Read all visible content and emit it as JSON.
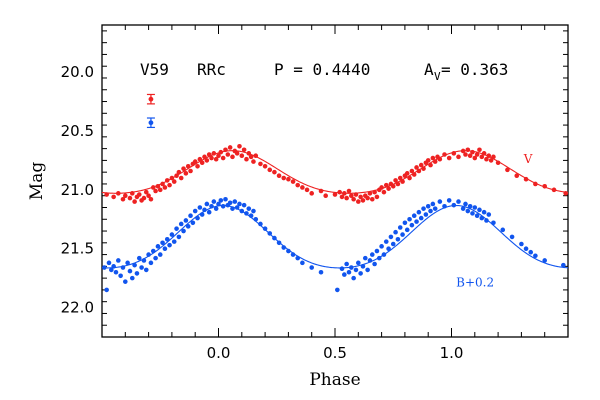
{
  "chart_data": {
    "type": "scatter",
    "xlabel": "Phase",
    "ylabel": "Mag",
    "xlim": [
      -0.5,
      1.5
    ],
    "ylim": [
      22.25,
      19.6
    ],
    "y_inverted": true,
    "x_ticks": [
      "0.0",
      "0.5",
      "1.0"
    ],
    "x_tick_values": [
      0.0,
      0.5,
      1.0
    ],
    "y_ticks": [
      "20.0",
      "20.5",
      "21.0",
      "21.5",
      "22.0"
    ],
    "y_tick_values": [
      20.0,
      20.5,
      21.0,
      21.5,
      22.0
    ],
    "header": {
      "star": "V59",
      "type": "RRc",
      "period": "P = 0.4440",
      "amp_prefix": "A",
      "amp_sub": "V",
      "amp_value": " = 0.363"
    },
    "error_bars": [
      {
        "series": "V",
        "x": -0.29,
        "y": 20.23,
        "err": 0.04
      },
      {
        "series": "B+0.2",
        "x": -0.29,
        "y": 20.43,
        "err": 0.04
      }
    ],
    "series": [
      {
        "name": "V",
        "label": "V",
        "label_x": 1.31,
        "label_y": 20.77,
        "color": "#ee2222",
        "mean": 20.87,
        "amplitude": 0.181,
        "max_phase": 0.06,
        "points": [
          [
            -0.48,
            21.04
          ],
          [
            -0.45,
            21.06
          ],
          [
            -0.43,
            21.03
          ],
          [
            -0.41,
            21.08
          ],
          [
            -0.4,
            21.05
          ],
          [
            -0.38,
            21.07
          ],
          [
            -0.37,
            21.03
          ],
          [
            -0.36,
            21.1
          ],
          [
            -0.35,
            21.06
          ],
          [
            -0.34,
            21.04
          ],
          [
            -0.33,
            21.09
          ],
          [
            -0.32,
            21.07
          ],
          [
            -0.31,
            21.02
          ],
          [
            -0.3,
            21.05
          ],
          [
            -0.29,
            21.08
          ],
          [
            -0.28,
            20.98
          ],
          [
            -0.27,
            21.01
          ],
          [
            -0.26,
            20.97
          ],
          [
            -0.25,
            21.0
          ],
          [
            -0.24,
            20.95
          ],
          [
            -0.23,
            20.98
          ],
          [
            -0.22,
            20.92
          ],
          [
            -0.21,
            20.96
          ],
          [
            -0.2,
            20.9
          ],
          [
            -0.19,
            20.93
          ],
          [
            -0.18,
            20.88
          ],
          [
            -0.17,
            20.85
          ],
          [
            -0.16,
            20.9
          ],
          [
            -0.15,
            20.82
          ],
          [
            -0.14,
            20.86
          ],
          [
            -0.13,
            20.8
          ],
          [
            -0.12,
            20.84
          ],
          [
            -0.11,
            20.78
          ],
          [
            -0.1,
            20.76
          ],
          [
            -0.09,
            20.8
          ],
          [
            -0.08,
            20.74
          ],
          [
            -0.07,
            20.77
          ],
          [
            -0.06,
            20.72
          ],
          [
            -0.05,
            20.75
          ],
          [
            -0.04,
            20.7
          ],
          [
            -0.03,
            20.73
          ],
          [
            -0.02,
            20.69
          ],
          [
            -0.01,
            20.74
          ],
          [
            0.0,
            20.71
          ],
          [
            0.01,
            20.68
          ],
          [
            0.02,
            20.73
          ],
          [
            0.03,
            20.66
          ],
          [
            0.04,
            20.7
          ],
          [
            0.05,
            20.64
          ],
          [
            0.06,
            20.72
          ],
          [
            0.07,
            20.67
          ],
          [
            0.08,
            20.69
          ],
          [
            0.09,
            20.63
          ],
          [
            0.1,
            20.71
          ],
          [
            0.11,
            20.66
          ],
          [
            0.12,
            20.74
          ],
          [
            0.13,
            20.69
          ],
          [
            0.14,
            20.72
          ],
          [
            0.15,
            20.76
          ],
          [
            0.16,
            20.71
          ],
          [
            0.18,
            20.78
          ],
          [
            0.2,
            20.8
          ],
          [
            0.22,
            20.83
          ],
          [
            0.24,
            20.85
          ],
          [
            0.26,
            20.88
          ],
          [
            0.28,
            20.9
          ],
          [
            0.3,
            20.91
          ],
          [
            0.32,
            20.93
          ],
          [
            0.34,
            20.96
          ],
          [
            0.36,
            20.98
          ],
          [
            0.38,
            21.0
          ],
          [
            0.4,
            21.03
          ],
          [
            0.44,
            21.01
          ],
          [
            0.46,
            21.05
          ],
          [
            0.5,
            21.04
          ],
          [
            0.52,
            21.02
          ],
          [
            0.53,
            21.06
          ],
          [
            0.54,
            21.03
          ],
          [
            0.55,
            21.07
          ],
          [
            0.56,
            21.01
          ],
          [
            0.57,
            21.05
          ],
          [
            0.58,
            21.08
          ],
          [
            0.59,
            21.04
          ],
          [
            0.6,
            21.1
          ],
          [
            0.61,
            21.06
          ],
          [
            0.62,
            21.09
          ],
          [
            0.63,
            21.05
          ],
          [
            0.64,
            21.07
          ],
          [
            0.65,
            21.03
          ],
          [
            0.66,
            21.08
          ],
          [
            0.67,
            21.02
          ],
          [
            0.68,
            21.06
          ],
          [
            0.69,
            21.0
          ],
          [
            0.7,
            20.98
          ],
          [
            0.71,
            21.02
          ],
          [
            0.72,
            20.96
          ],
          [
            0.73,
            20.99
          ],
          [
            0.74,
            20.95
          ],
          [
            0.75,
            20.97
          ],
          [
            0.76,
            20.92
          ],
          [
            0.77,
            20.95
          ],
          [
            0.78,
            20.9
          ],
          [
            0.79,
            20.93
          ],
          [
            0.8,
            20.88
          ],
          [
            0.81,
            20.86
          ],
          [
            0.82,
            20.9
          ],
          [
            0.83,
            20.84
          ],
          [
            0.84,
            20.87
          ],
          [
            0.85,
            20.81
          ],
          [
            0.86,
            20.84
          ],
          [
            0.87,
            20.79
          ],
          [
            0.88,
            20.82
          ],
          [
            0.89,
            20.77
          ],
          [
            0.9,
            20.75
          ],
          [
            0.91,
            20.79
          ],
          [
            0.92,
            20.73
          ],
          [
            0.93,
            20.76
          ],
          [
            0.94,
            20.72
          ],
          [
            0.95,
            20.74
          ],
          [
            0.97,
            20.7
          ],
          [
            0.99,
            20.73
          ],
          [
            1.01,
            20.69
          ],
          [
            1.03,
            20.72
          ],
          [
            1.05,
            20.67
          ],
          [
            1.06,
            20.7
          ],
          [
            1.07,
            20.66
          ],
          [
            1.08,
            20.71
          ],
          [
            1.09,
            20.68
          ],
          [
            1.1,
            20.73
          ],
          [
            1.11,
            20.7
          ],
          [
            1.12,
            20.66
          ],
          [
            1.13,
            20.72
          ],
          [
            1.14,
            20.69
          ],
          [
            1.15,
            20.74
          ],
          [
            1.16,
            20.71
          ],
          [
            1.17,
            20.75
          ],
          [
            1.18,
            20.72
          ],
          [
            1.2,
            20.77
          ],
          [
            1.24,
            20.83
          ],
          [
            1.28,
            20.88
          ],
          [
            1.32,
            20.91
          ],
          [
            1.36,
            20.95
          ],
          [
            1.4,
            20.97
          ],
          [
            1.44,
            21.0
          ],
          [
            1.49,
            21.03
          ]
        ]
      },
      {
        "name": "B+0.2",
        "label": "B+0.2",
        "label_x": 1.02,
        "label_y": 21.82,
        "color": "#1155ee",
        "mean": 21.43,
        "amplitude": 0.265,
        "max_phase": 0.02,
        "points": [
          [
            -0.49,
            21.66
          ],
          [
            -0.48,
            21.85
          ],
          [
            -0.47,
            21.62
          ],
          [
            -0.46,
            21.68
          ],
          [
            -0.45,
            21.65
          ],
          [
            -0.44,
            21.7
          ],
          [
            -0.43,
            21.6
          ],
          [
            -0.42,
            21.73
          ],
          [
            -0.41,
            21.66
          ],
          [
            -0.4,
            21.78
          ],
          [
            -0.39,
            21.62
          ],
          [
            -0.38,
            21.69
          ],
          [
            -0.37,
            21.75
          ],
          [
            -0.36,
            21.64
          ],
          [
            -0.35,
            21.71
          ],
          [
            -0.34,
            21.58
          ],
          [
            -0.33,
            21.66
          ],
          [
            -0.32,
            21.6
          ],
          [
            -0.31,
            21.68
          ],
          [
            -0.3,
            21.55
          ],
          [
            -0.29,
            21.62
          ],
          [
            -0.28,
            21.52
          ],
          [
            -0.27,
            21.58
          ],
          [
            -0.26,
            21.48
          ],
          [
            -0.25,
            21.55
          ],
          [
            -0.24,
            21.45
          ],
          [
            -0.23,
            21.5
          ],
          [
            -0.22,
            21.42
          ],
          [
            -0.21,
            21.47
          ],
          [
            -0.2,
            21.38
          ],
          [
            -0.19,
            21.44
          ],
          [
            -0.18,
            21.33
          ],
          [
            -0.17,
            21.4
          ],
          [
            -0.16,
            21.29
          ],
          [
            -0.15,
            21.35
          ],
          [
            -0.14,
            21.26
          ],
          [
            -0.13,
            21.31
          ],
          [
            -0.12,
            21.22
          ],
          [
            -0.11,
            21.28
          ],
          [
            -0.1,
            21.18
          ],
          [
            -0.09,
            21.24
          ],
          [
            -0.08,
            21.15
          ],
          [
            -0.07,
            21.21
          ],
          [
            -0.06,
            21.17
          ],
          [
            -0.05,
            21.12
          ],
          [
            -0.04,
            21.19
          ],
          [
            -0.03,
            21.14
          ],
          [
            -0.02,
            21.1
          ],
          [
            -0.01,
            21.16
          ],
          [
            0.0,
            21.12
          ],
          [
            0.01,
            21.09
          ],
          [
            0.02,
            21.14
          ],
          [
            0.03,
            21.08
          ],
          [
            0.04,
            21.13
          ],
          [
            0.05,
            21.11
          ],
          [
            0.06,
            21.16
          ],
          [
            0.07,
            21.1
          ],
          [
            0.08,
            21.15
          ],
          [
            0.09,
            21.12
          ],
          [
            0.1,
            21.18
          ],
          [
            0.11,
            21.13
          ],
          [
            0.12,
            21.2
          ],
          [
            0.13,
            21.16
          ],
          [
            0.14,
            21.22
          ],
          [
            0.15,
            21.18
          ],
          [
            0.16,
            21.25
          ],
          [
            0.18,
            21.29
          ],
          [
            0.2,
            21.33
          ],
          [
            0.22,
            21.37
          ],
          [
            0.24,
            21.41
          ],
          [
            0.26,
            21.45
          ],
          [
            0.28,
            21.49
          ],
          [
            0.3,
            21.52
          ],
          [
            0.32,
            21.55
          ],
          [
            0.34,
            21.58
          ],
          [
            0.36,
            21.62
          ],
          [
            0.4,
            21.66
          ],
          [
            0.44,
            21.7
          ],
          [
            0.51,
            21.85
          ],
          [
            0.53,
            21.67
          ],
          [
            0.54,
            21.72
          ],
          [
            0.55,
            21.63
          ],
          [
            0.56,
            21.7
          ],
          [
            0.57,
            21.66
          ],
          [
            0.58,
            21.75
          ],
          [
            0.59,
            21.68
          ],
          [
            0.6,
            21.62
          ],
          [
            0.61,
            21.71
          ],
          [
            0.62,
            21.65
          ],
          [
            0.63,
            21.58
          ],
          [
            0.64,
            21.68
          ],
          [
            0.65,
            21.6
          ],
          [
            0.66,
            21.55
          ],
          [
            0.67,
            21.63
          ],
          [
            0.68,
            21.52
          ],
          [
            0.69,
            21.58
          ],
          [
            0.7,
            21.48
          ],
          [
            0.71,
            21.55
          ],
          [
            0.72,
            21.44
          ],
          [
            0.73,
            21.5
          ],
          [
            0.74,
            21.4
          ],
          [
            0.75,
            21.46
          ],
          [
            0.76,
            21.36
          ],
          [
            0.77,
            21.42
          ],
          [
            0.78,
            21.32
          ],
          [
            0.79,
            21.38
          ],
          [
            0.8,
            21.28
          ],
          [
            0.81,
            21.34
          ],
          [
            0.82,
            21.25
          ],
          [
            0.83,
            21.3
          ],
          [
            0.84,
            21.22
          ],
          [
            0.85,
            21.27
          ],
          [
            0.86,
            21.19
          ],
          [
            0.87,
            21.24
          ],
          [
            0.88,
            21.16
          ],
          [
            0.89,
            21.21
          ],
          [
            0.9,
            21.14
          ],
          [
            0.91,
            21.18
          ],
          [
            0.92,
            21.12
          ],
          [
            0.93,
            21.16
          ],
          [
            0.95,
            21.1
          ],
          [
            0.97,
            21.14
          ],
          [
            0.99,
            21.09
          ],
          [
            1.01,
            21.13
          ],
          [
            1.03,
            21.1
          ],
          [
            1.05,
            21.16
          ],
          [
            1.06,
            21.12
          ],
          [
            1.07,
            21.18
          ],
          [
            1.08,
            21.14
          ],
          [
            1.09,
            21.2
          ],
          [
            1.1,
            21.15
          ],
          [
            1.11,
            21.22
          ],
          [
            1.12,
            21.17
          ],
          [
            1.13,
            21.24
          ],
          [
            1.14,
            21.19
          ],
          [
            1.15,
            21.26
          ],
          [
            1.16,
            21.21
          ],
          [
            1.18,
            21.28
          ],
          [
            1.22,
            21.34
          ],
          [
            1.26,
            21.4
          ],
          [
            1.3,
            21.46
          ],
          [
            1.32,
            21.5
          ],
          [
            1.34,
            21.53
          ],
          [
            1.36,
            21.56
          ],
          [
            1.4,
            21.6
          ],
          [
            1.48,
            21.64
          ]
        ]
      }
    ]
  }
}
